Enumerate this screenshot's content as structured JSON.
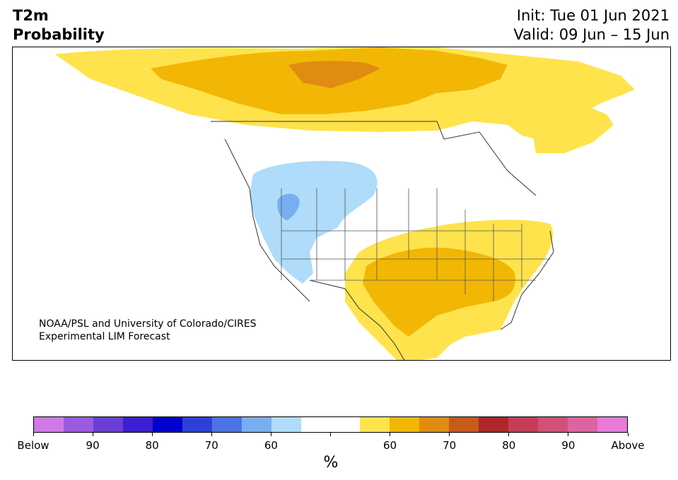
{
  "title": {
    "left_line1": "T2m",
    "left_line2": "Probability",
    "right_line1": "Init: Tue 01 Jun 2021",
    "right_line2": "Valid: 09 Jun – 15 Jun"
  },
  "credit": {
    "line1": "NOAA/PSL and University of Colorado/CIRES",
    "line2": "Experimental LIM Forecast"
  },
  "colorbar": {
    "colors": [
      "#d178e8",
      "#9b5ae0",
      "#6a3ed6",
      "#3c1fd0",
      "#0000cc",
      "#2e3fd8",
      "#4d72e6",
      "#78aef0",
      "#aedcfa",
      "#ffffff",
      "#ffffff",
      "#ffe34d",
      "#f2b705",
      "#e08c10",
      "#c85a1a",
      "#b0262a",
      "#c43c58",
      "#d25078",
      "#dc64a0",
      "#e87ad8"
    ],
    "labels": [
      "Below",
      "90",
      "80",
      "70",
      "60",
      "",
      "60",
      "70",
      "80",
      "90",
      "Above"
    ],
    "unit": "%"
  },
  "legend_colors": {
    "above_60": "#ffe34d",
    "above_70": "#f2b705",
    "above_80": "#e08c10",
    "below_60": "#aedcfa",
    "below_70": "#78aef0"
  }
}
